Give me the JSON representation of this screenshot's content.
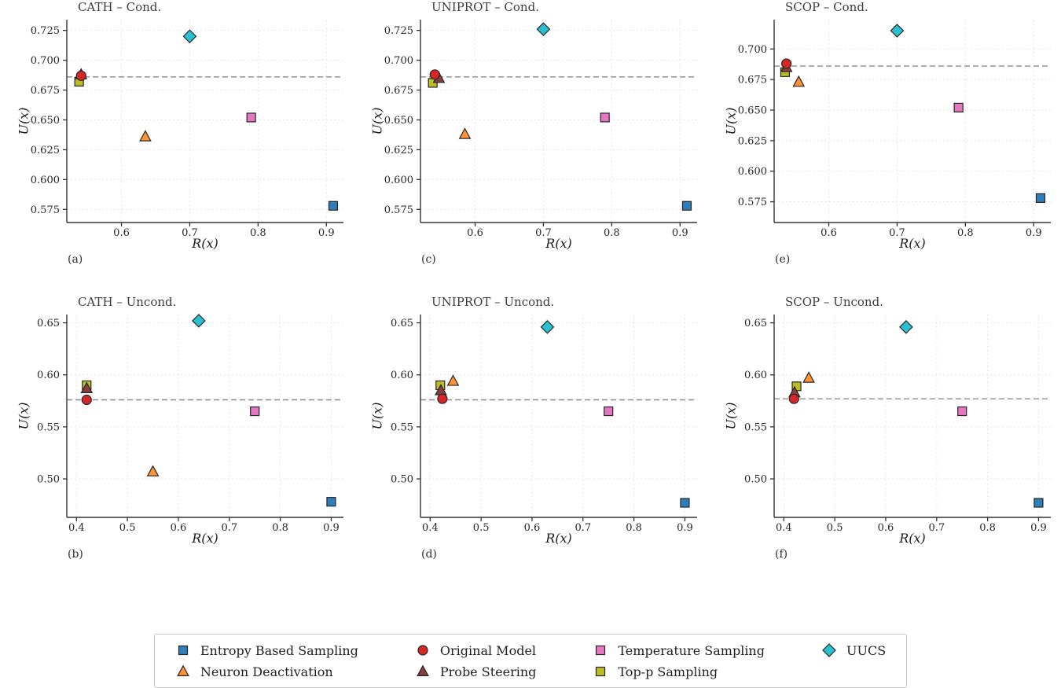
{
  "series": {
    "entropy": {
      "label": "Entropy Based Sampling",
      "marker": "square",
      "color": "#2e7ebc"
    },
    "neuron": {
      "label": "Neuron Deactivation",
      "marker": "triangle",
      "color": "#ff9233"
    },
    "original": {
      "label": "Original Model",
      "marker": "circle",
      "color": "#d62728"
    },
    "probe": {
      "label": "Probe Steering",
      "marker": "triangle",
      "color": "#8a3d3f"
    },
    "temperature": {
      "label": "Temperature Sampling",
      "marker": "square",
      "color": "#e377c2"
    },
    "topp": {
      "label": "Top-p Sampling",
      "marker": "square",
      "color": "#bcbd22"
    },
    "uucs": {
      "label": "UUCS",
      "marker": "diamond",
      "color": "#2bc0d0"
    }
  },
  "legend": {
    "order": [
      "entropy",
      "neuron",
      "original",
      "probe",
      "temperature",
      "topp",
      "uucs"
    ]
  },
  "style": {
    "baseline_color": "#8a8a8a",
    "grid_color": "#e4e4e4",
    "axis_color": "#333333",
    "marker_edge": "#262626"
  },
  "chart_data": [
    {
      "type": "scatter",
      "title": "CATH – Cond.",
      "caption": "(a)",
      "xlabel": "R(x)",
      "ylabel": "U(x)",
      "xlim": [
        0.52,
        0.925
      ],
      "ylim": [
        0.564,
        0.734
      ],
      "xticks": [
        "0.6",
        "0.7",
        "0.8",
        "0.9"
      ],
      "yticks": [
        "0.575",
        "0.600",
        "0.625",
        "0.650",
        "0.675",
        "0.700",
        "0.725"
      ],
      "baseline_y": 0.686,
      "points": [
        {
          "series": "entropy",
          "x": 0.91,
          "y": 0.578
        },
        {
          "series": "temperature",
          "x": 0.79,
          "y": 0.652
        },
        {
          "series": "neuron",
          "x": 0.635,
          "y": 0.636
        },
        {
          "series": "topp",
          "x": 0.538,
          "y": 0.682
        },
        {
          "series": "probe",
          "x": 0.541,
          "y": 0.688
        },
        {
          "series": "original",
          "x": 0.541,
          "y": 0.687
        },
        {
          "series": "uucs",
          "x": 0.7,
          "y": 0.72
        }
      ]
    },
    {
      "type": "scatter",
      "title": "UNIPROT – Cond.",
      "caption": "(c)",
      "xlabel": "R(x)",
      "ylabel": "U(x)",
      "xlim": [
        0.52,
        0.925
      ],
      "ylim": [
        0.564,
        0.734
      ],
      "xticks": [
        "0.6",
        "0.7",
        "0.8",
        "0.9"
      ],
      "yticks": [
        "0.575",
        "0.600",
        "0.625",
        "0.650",
        "0.675",
        "0.700",
        "0.725"
      ],
      "baseline_y": 0.686,
      "points": [
        {
          "series": "entropy",
          "x": 0.91,
          "y": 0.578
        },
        {
          "series": "temperature",
          "x": 0.79,
          "y": 0.652
        },
        {
          "series": "neuron",
          "x": 0.585,
          "y": 0.638
        },
        {
          "series": "topp",
          "x": 0.538,
          "y": 0.681
        },
        {
          "series": "probe",
          "x": 0.547,
          "y": 0.685
        },
        {
          "series": "original",
          "x": 0.541,
          "y": 0.688
        },
        {
          "series": "uucs",
          "x": 0.7,
          "y": 0.726
        }
      ]
    },
    {
      "type": "scatter",
      "title": "SCOP – Cond.",
      "caption": "(e)",
      "xlabel": "R(x)",
      "ylabel": "U(x)",
      "xlim": [
        0.52,
        0.925
      ],
      "ylim": [
        0.558,
        0.724
      ],
      "xticks": [
        "0.6",
        "0.7",
        "0.8",
        "0.9"
      ],
      "yticks": [
        "0.575",
        "0.600",
        "0.625",
        "0.650",
        "0.675",
        "0.700"
      ],
      "baseline_y": 0.686,
      "points": [
        {
          "series": "entropy",
          "x": 0.91,
          "y": 0.578
        },
        {
          "series": "temperature",
          "x": 0.79,
          "y": 0.652
        },
        {
          "series": "neuron",
          "x": 0.556,
          "y": 0.673
        },
        {
          "series": "topp",
          "x": 0.536,
          "y": 0.681
        },
        {
          "series": "probe",
          "x": 0.538,
          "y": 0.685
        },
        {
          "series": "original",
          "x": 0.538,
          "y": 0.688
        },
        {
          "series": "uucs",
          "x": 0.7,
          "y": 0.715
        }
      ]
    },
    {
      "type": "scatter",
      "title": "CATH – Uncond.",
      "caption": "(b)",
      "xlabel": "R(x)",
      "ylabel": "U(x)",
      "xlim": [
        0.381,
        0.924
      ],
      "ylim": [
        0.463,
        0.658
      ],
      "xticks": [
        "0.4",
        "0.5",
        "0.6",
        "0.7",
        "0.8",
        "0.9"
      ],
      "yticks": [
        "0.50",
        "0.55",
        "0.60",
        "0.65"
      ],
      "baseline_y": 0.576,
      "points": [
        {
          "series": "entropy",
          "x": 0.9,
          "y": 0.478
        },
        {
          "series": "temperature",
          "x": 0.75,
          "y": 0.565
        },
        {
          "series": "neuron",
          "x": 0.55,
          "y": 0.507
        },
        {
          "series": "topp",
          "x": 0.42,
          "y": 0.59
        },
        {
          "series": "probe",
          "x": 0.42,
          "y": 0.587
        },
        {
          "series": "original",
          "x": 0.42,
          "y": 0.576
        },
        {
          "series": "uucs",
          "x": 0.64,
          "y": 0.652
        }
      ]
    },
    {
      "type": "scatter",
      "title": "UNIPROT – Uncond.",
      "caption": "(d)",
      "xlabel": "R(x)",
      "ylabel": "U(x)",
      "xlim": [
        0.381,
        0.924
      ],
      "ylim": [
        0.463,
        0.658
      ],
      "xticks": [
        "0.4",
        "0.5",
        "0.6",
        "0.7",
        "0.8",
        "0.9"
      ],
      "yticks": [
        "0.50",
        "0.55",
        "0.60",
        "0.65"
      ],
      "baseline_y": 0.576,
      "points": [
        {
          "series": "entropy",
          "x": 0.9,
          "y": 0.477
        },
        {
          "series": "temperature",
          "x": 0.75,
          "y": 0.565
        },
        {
          "series": "neuron",
          "x": 0.445,
          "y": 0.594
        },
        {
          "series": "topp",
          "x": 0.42,
          "y": 0.59
        },
        {
          "series": "probe",
          "x": 0.421,
          "y": 0.585
        },
        {
          "series": "original",
          "x": 0.424,
          "y": 0.577
        },
        {
          "series": "uucs",
          "x": 0.63,
          "y": 0.646
        }
      ]
    },
    {
      "type": "scatter",
      "title": "SCOP – Uncond.",
      "caption": "(f)",
      "xlabel": "R(x)",
      "ylabel": "U(x)",
      "xlim": [
        0.381,
        0.924
      ],
      "ylim": [
        0.463,
        0.658
      ],
      "xticks": [
        "0.4",
        "0.5",
        "0.6",
        "0.7",
        "0.8",
        "0.9"
      ],
      "yticks": [
        "0.50",
        "0.55",
        "0.60",
        "0.65"
      ],
      "baseline_y": 0.577,
      "points": [
        {
          "series": "entropy",
          "x": 0.9,
          "y": 0.477
        },
        {
          "series": "temperature",
          "x": 0.75,
          "y": 0.565
        },
        {
          "series": "neuron",
          "x": 0.449,
          "y": 0.597
        },
        {
          "series": "topp",
          "x": 0.425,
          "y": 0.589
        },
        {
          "series": "probe",
          "x": 0.421,
          "y": 0.583
        },
        {
          "series": "original",
          "x": 0.42,
          "y": 0.577
        },
        {
          "series": "uucs",
          "x": 0.64,
          "y": 0.646
        }
      ]
    }
  ]
}
